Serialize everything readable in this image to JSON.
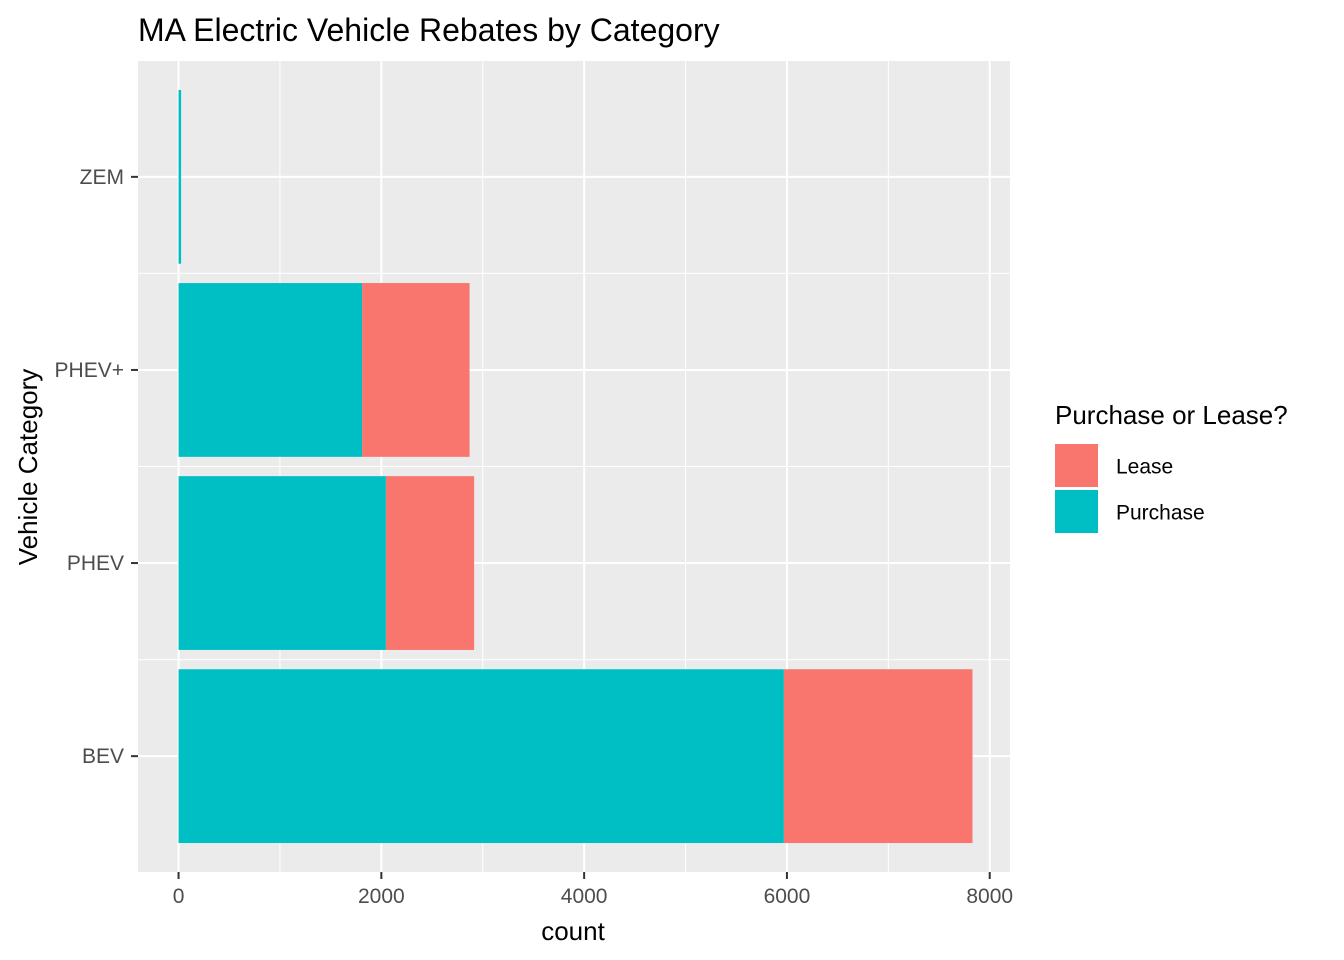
{
  "chart_data": {
    "type": "bar",
    "orientation": "horizontal",
    "stacked": true,
    "title": "MA Electric Vehicle Rebates by Category",
    "xlabel": "count",
    "ylabel": "Vehicle Category",
    "categories": [
      "BEV",
      "PHEV",
      "PHEV+",
      "ZEM"
    ],
    "series": [
      {
        "name": "Purchase",
        "color": "#00BFC4",
        "values": [
          5970,
          2045,
          1810,
          25
        ]
      },
      {
        "name": "Lease",
        "color": "#F8766D",
        "values": [
          1860,
          870,
          1060,
          0
        ]
      }
    ],
    "xlim": [
      -400,
      8200
    ],
    "xticks": [
      0,
      2000,
      4000,
      6000,
      8000
    ],
    "xtick_labels": [
      "0",
      "2000",
      "4000",
      "6000",
      "8000"
    ],
    "grid": true,
    "legend": {
      "title": "Purchase or Lease?",
      "placement": "right",
      "entries": [
        {
          "label": "Lease",
          "color": "#F8766D"
        },
        {
          "label": "Purchase",
          "color": "#00BFC4"
        }
      ]
    },
    "panel_background": "#EBEBEB",
    "grid_color": "#FFFFFF"
  }
}
